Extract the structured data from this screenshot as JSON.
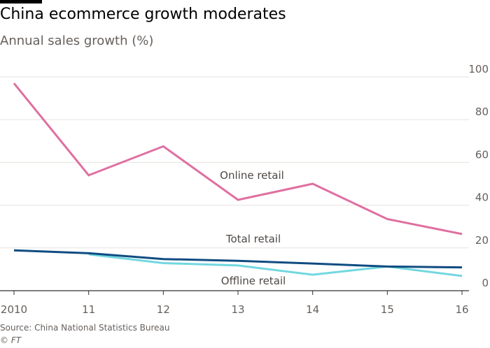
{
  "header": {
    "title": "China ecommerce growth moderates",
    "subtitle": "Annual sales growth (%)"
  },
  "footer": {
    "source": "Source: China National Statistics Bureau",
    "credit": "© FT"
  },
  "colors": {
    "online": "#e06fa0",
    "total": "#0f4c81",
    "offline": "#72d7e0",
    "grid": "#e6e2de",
    "axis": "#33302e"
  },
  "chart_data": {
    "type": "line",
    "x": [
      2010,
      2011,
      2012,
      2013,
      2014,
      2015,
      2016
    ],
    "x_tick_labels": [
      "2010",
      "11",
      "12",
      "13",
      "14",
      "15",
      "16"
    ],
    "y_ticks": [
      0,
      20,
      40,
      60,
      80,
      100
    ],
    "ylim": [
      0,
      100
    ],
    "y_axis_side": "right",
    "grid": true,
    "series": [
      {
        "key": "online",
        "name": "Online retail",
        "x": [
          2010,
          2011,
          2012,
          2013,
          2014,
          2015,
          2016
        ],
        "values": [
          97,
          54,
          67.5,
          42.5,
          50,
          33.5,
          26.5
        ]
      },
      {
        "key": "total",
        "name": "Total retail",
        "x": [
          2010,
          2011,
          2012,
          2013,
          2014,
          2015,
          2016
        ],
        "values": [
          18.9,
          17.5,
          14.8,
          14,
          12.7,
          11.3,
          10.9
        ]
      },
      {
        "key": "offline",
        "name": "Offline retail",
        "x": [
          2011,
          2012,
          2013,
          2014,
          2015,
          2016
        ],
        "values": [
          17,
          12.9,
          11.8,
          7.5,
          11.3,
          6.9
        ]
      }
    ]
  }
}
